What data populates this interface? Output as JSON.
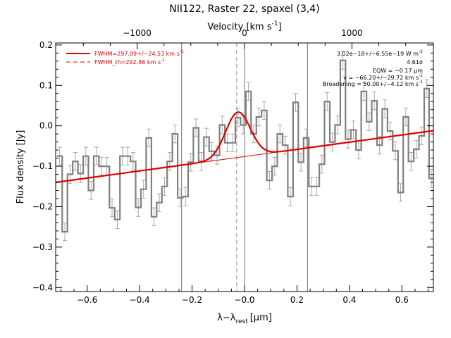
{
  "chart_data": {
    "type": "line",
    "title": "NII122, Raster 22, spaxel (3,4)",
    "xlabel": "λ−λ",
    "xlabel_sub": "rest",
    "xlabel_unit": "[μm]",
    "ylabel": "Flux density [Jy]",
    "top_axis_label": "Velocity [km s",
    "top_axis_label_sup": "-1",
    "top_axis_label_end": "]",
    "xlim": [
      -0.72,
      0.72
    ],
    "ylim": [
      -0.41,
      0.205
    ],
    "x_ticks": [
      -0.6,
      -0.4,
      -0.2,
      0.0,
      0.2,
      0.4,
      0.6
    ],
    "x_tick_labels": [
      "−0.6",
      "−0.4",
      "−0.2",
      "−0.0",
      "0.2",
      "0.4",
      "0.6"
    ],
    "y_ticks": [
      -0.4,
      -0.3,
      -0.2,
      -0.1,
      0.0,
      0.1,
      0.2
    ],
    "y_tick_labels": [
      "−0.4",
      "−0.3",
      "−0.2",
      "−0.1",
      "0.0",
      "0.1",
      "0.2"
    ],
    "top_ticks_kms": [
      -1000,
      0,
      1000
    ],
    "top_tick_labels": [
      "−1000",
      "0",
      "1000"
    ],
    "kms_per_um": 2442,
    "vertical_lines": [
      -0.24,
      0.0,
      0.24
    ],
    "dashed_vline": -0.03,
    "series": [
      {
        "name": "spectrum",
        "color": "#808080",
        "x": [
          -0.705,
          -0.685,
          -0.665,
          -0.645,
          -0.625,
          -0.605,
          -0.585,
          -0.565,
          -0.545,
          -0.525,
          -0.505,
          -0.485,
          -0.465,
          -0.445,
          -0.425,
          -0.405,
          -0.385,
          -0.365,
          -0.345,
          -0.325,
          -0.305,
          -0.285,
          -0.265,
          -0.245,
          -0.225,
          -0.205,
          -0.185,
          -0.165,
          -0.145,
          -0.125,
          -0.105,
          -0.085,
          -0.065,
          -0.045,
          -0.025,
          -0.005,
          0.015,
          0.035,
          0.055,
          0.075,
          0.095,
          0.115,
          0.135,
          0.155,
          0.175,
          0.195,
          0.215,
          0.235,
          0.255,
          0.275,
          0.295,
          0.315,
          0.335,
          0.355,
          0.375,
          0.395,
          0.415,
          0.435,
          0.455,
          0.475,
          0.495,
          0.515,
          0.535,
          0.555,
          0.575,
          0.595,
          0.615,
          0.635,
          0.655,
          0.675,
          0.695,
          0.712
        ],
        "y": [
          -0.075,
          -0.262,
          -0.12,
          -0.088,
          -0.118,
          -0.075,
          -0.16,
          -0.075,
          -0.1,
          -0.1,
          -0.203,
          -0.232,
          -0.075,
          -0.075,
          -0.088,
          -0.202,
          -0.157,
          -0.03,
          -0.225,
          -0.19,
          -0.15,
          -0.088,
          -0.02,
          -0.178,
          -0.175,
          -0.09,
          -0.005,
          -0.088,
          -0.028,
          -0.063,
          -0.073,
          0.002,
          -0.042,
          -0.042,
          0.02,
          0.002,
          0.085,
          -0.02,
          0.022,
          0.038,
          -0.135,
          -0.1,
          -0.02,
          -0.048,
          -0.175,
          0.058,
          -0.09,
          -0.03,
          -0.15,
          -0.15,
          -0.095,
          0.06,
          -0.04,
          0.002,
          0.162,
          -0.033,
          -0.01,
          -0.06,
          0.085,
          0.01,
          0.062,
          -0.048,
          0.042,
          -0.013,
          -0.062,
          -0.165,
          0.022,
          -0.088,
          -0.058,
          -0.025,
          0.092,
          -0.13
        ],
        "err": [
          0.022,
          0.022,
          0.022,
          0.022,
          0.022,
          0.022,
          0.022,
          0.022,
          0.022,
          0.022,
          0.022,
          0.022,
          0.022,
          0.022,
          0.022,
          0.022,
          0.022,
          0.022,
          0.022,
          0.022,
          0.022,
          0.022,
          0.022,
          0.022,
          0.022,
          0.022,
          0.022,
          0.022,
          0.022,
          0.022,
          0.022,
          0.022,
          0.022,
          0.022,
          0.022,
          0.022,
          0.022,
          0.022,
          0.022,
          0.022,
          0.022,
          0.022,
          0.022,
          0.022,
          0.022,
          0.022,
          0.022,
          0.022,
          0.022,
          0.022,
          0.022,
          0.022,
          0.022,
          0.022,
          0.022,
          0.022,
          0.022,
          0.022,
          0.022,
          0.022,
          0.022,
          0.022,
          0.022,
          0.022,
          0.022,
          0.022,
          0.022,
          0.022,
          0.022,
          0.022,
          0.022,
          0.022
        ]
      },
      {
        "name": "baseline",
        "color": "#e00000",
        "x": [
          -0.72,
          0.72
        ],
        "y": [
          -0.14,
          -0.012
        ]
      },
      {
        "name": "gaussian fit",
        "color": "#e00000",
        "center": -0.025,
        "amplitude": 0.112,
        "sigma": 0.047,
        "range": [
          -0.24,
          0.24
        ]
      }
    ],
    "legend": {
      "placement": "top-left",
      "color": "#e00000",
      "entries": [
        {
          "text": "FWHM=297.09+/−24.53 km s",
          "sup": "-1",
          "style": "solid"
        },
        {
          "text": "FWHM_th=292.86 km s",
          "sup": "-1",
          "style": "dashed"
        }
      ]
    },
    "annotations": [
      {
        "text": "3.02e−18+/−6.55e−19 W m",
        "sup": "-2"
      },
      {
        "text": "4.61σ",
        "sup": ""
      },
      {
        "text": "EQW = −0.17 μm",
        "sup": ""
      },
      {
        "text": "v = −66.20+/−29.72 km s",
        "sup": "-1"
      },
      {
        "text": "Broadening = 50.00+/−4.12 km s",
        "sup": "-1"
      }
    ]
  }
}
